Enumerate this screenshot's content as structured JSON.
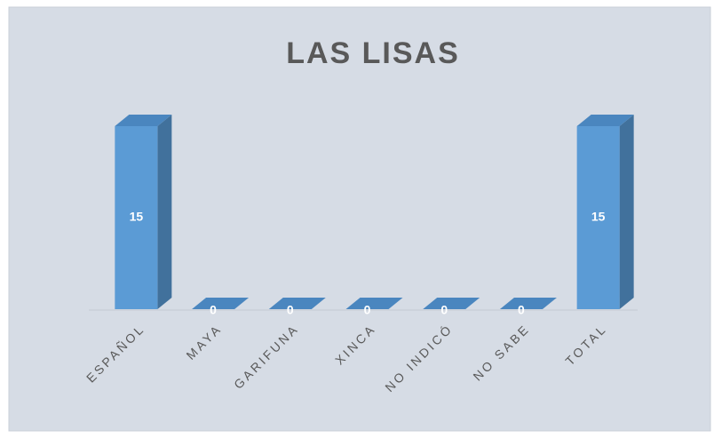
{
  "chart_data": {
    "type": "bar3d",
    "title": "LAS LISAS",
    "categories": [
      "ESPAÑOL",
      "MAYA",
      "GARIFUNA",
      "XINCA",
      "NO INDICÓ",
      "NO SABE",
      "TOTAL"
    ],
    "values": [
      15,
      0,
      0,
      0,
      0,
      0,
      15
    ],
    "color": "#5b9bd5"
  }
}
